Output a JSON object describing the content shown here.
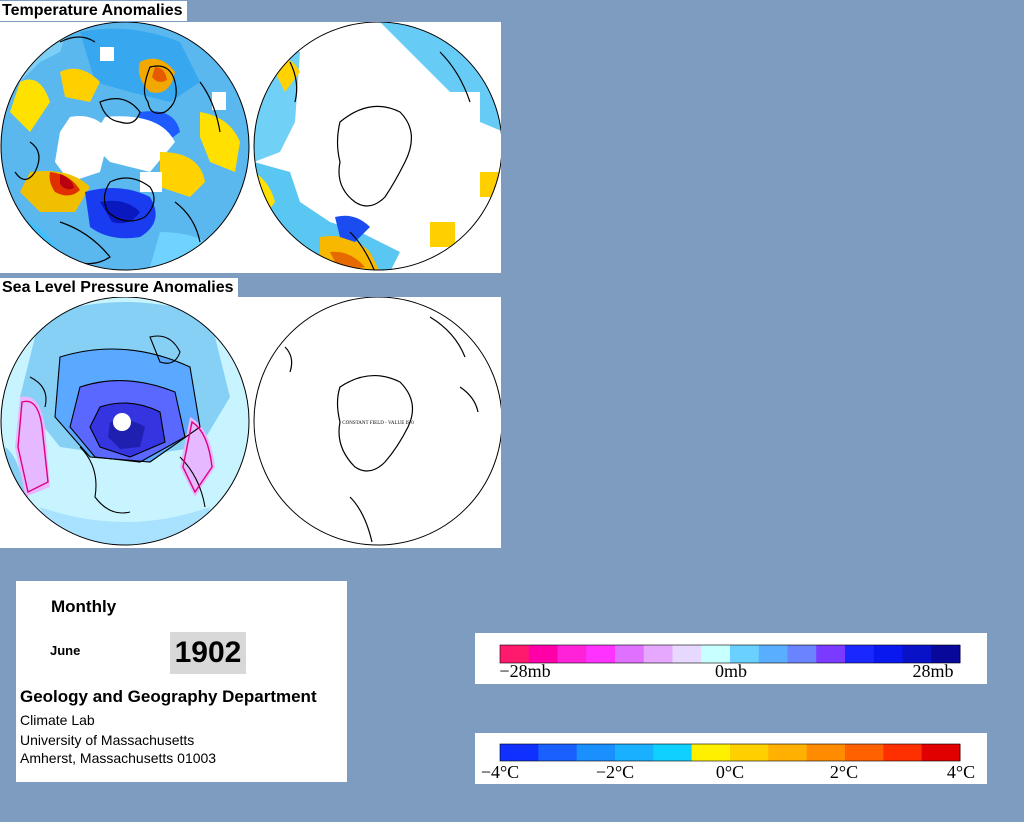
{
  "titles": {
    "temperature": "Temperature Anomalies",
    "pressure": "Sea Level Pressure Anomalies"
  },
  "maps": {
    "constant_field_label": "CONSTANT FIELD - VALUE IS 0"
  },
  "info": {
    "period": "Monthly",
    "month": "June",
    "year": "1902",
    "department": "Geology and Geography Department",
    "lab": "Climate Lab",
    "university": "University of Massachusetts",
    "address": "Amherst, Massachusetts 01003"
  },
  "pressure_legend": {
    "colors": [
      "#ff1a6e",
      "#ff00a8",
      "#ff22d8",
      "#ff33ff",
      "#e070ff",
      "#e6a8ff",
      "#e6d8ff",
      "#c8ffff",
      "#6ad0ff",
      "#5aaeff",
      "#6a84ff",
      "#7a3aff",
      "#1a28ff",
      "#0818ee",
      "#0a12c8",
      "#08089a"
    ],
    "tick_labels": [
      "−28mb",
      "0mb",
      "28mb"
    ]
  },
  "temperature_legend": {
    "colors": [
      "#1030ff",
      "#1a60ff",
      "#1a90ff",
      "#18b0ff",
      "#10d0ff",
      "#fff000",
      "#ffd000",
      "#ffb000",
      "#ff8c00",
      "#ff6000",
      "#ff3000",
      "#e00000"
    ],
    "tick_labels": [
      "−4°C",
      "−2°C",
      "0°C",
      "2°C",
      "4°C"
    ]
  }
}
